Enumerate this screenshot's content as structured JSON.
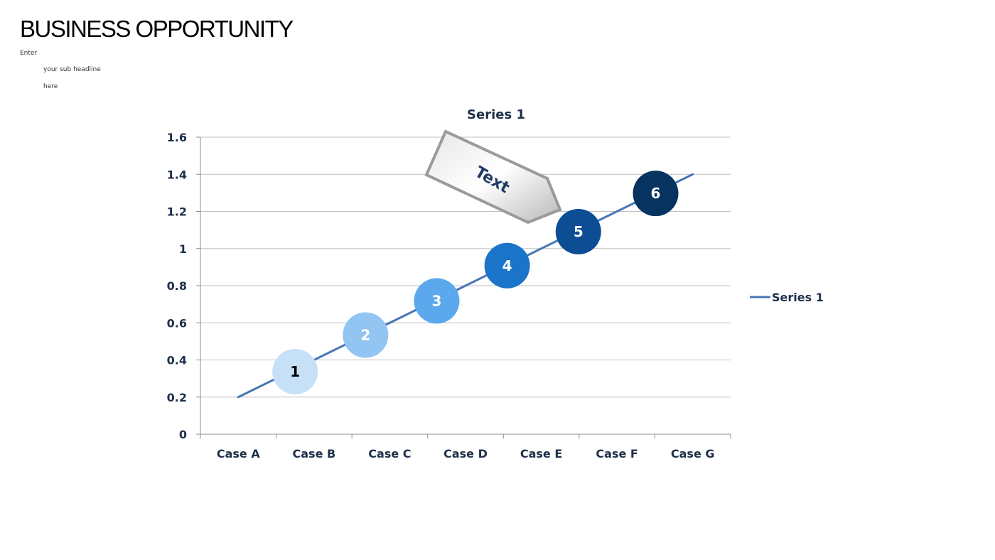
{
  "header": {
    "title": "BUSINESS OPPORTUNITY",
    "sub_line_1": "Enter",
    "sub_line_2": "your sub headline",
    "sub_line_3": "here"
  },
  "chart_data": {
    "type": "line",
    "title": "Series 1",
    "categories": [
      "Case A",
      "Case B",
      "Case C",
      "Case D",
      "Case E",
      "Case F",
      "Case G"
    ],
    "series": [
      {
        "name": "Series 1",
        "values": [
          0.2,
          0.4,
          0.6,
          0.8,
          1.0,
          1.2,
          1.4
        ],
        "color": "#4a76b5"
      }
    ],
    "ylim": [
      0,
      1.6
    ],
    "yticks": [
      0,
      0.2,
      0.4,
      0.6,
      0.8,
      1,
      1.2,
      1.4,
      1.6
    ],
    "ytick_labels": [
      "0",
      "0.2",
      "0.4",
      "0.6",
      "0.8",
      "1",
      "1.2",
      "1.4",
      "1.6"
    ],
    "grid": true,
    "legend": "right",
    "markers": [
      {
        "label": "1",
        "x": 1.75,
        "y": 0.337,
        "fill": "#c6e0f7",
        "text_color": "#000000"
      },
      {
        "label": "2",
        "x": 2.68,
        "y": 0.534,
        "fill": "#92c5f1",
        "text_color": "#ffffff"
      },
      {
        "label": "3",
        "x": 3.62,
        "y": 0.718,
        "fill": "#5ba9ec",
        "text_color": "#ffffff"
      },
      {
        "label": "4",
        "x": 4.55,
        "y": 0.908,
        "fill": "#1a74c9",
        "text_color": "#ffffff"
      },
      {
        "label": "5",
        "x": 5.49,
        "y": 1.091,
        "fill": "#0c4d94",
        "text_color": "#ffffff"
      },
      {
        "label": "6",
        "x": 6.51,
        "y": 1.297,
        "fill": "#06335f",
        "text_color": "#ffffff"
      }
    ],
    "callout": {
      "text": "Text"
    }
  }
}
